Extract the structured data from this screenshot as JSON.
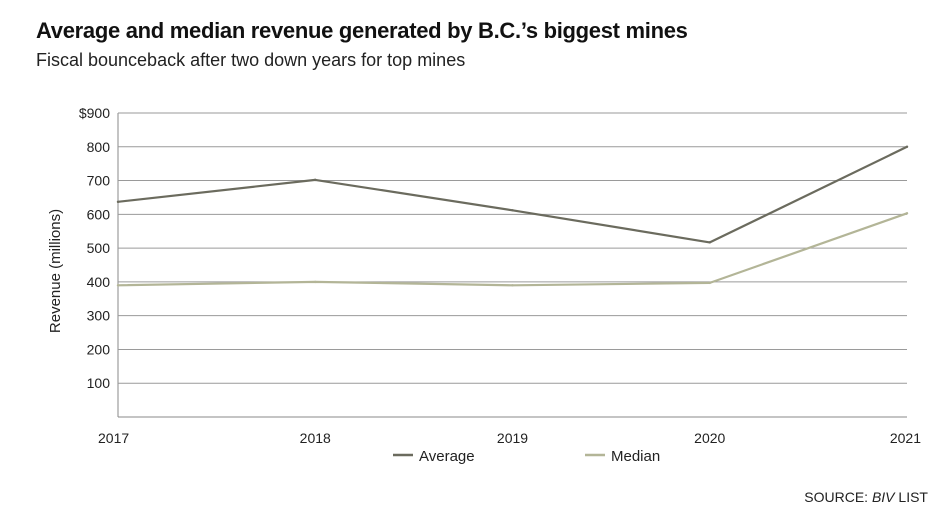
{
  "chart_data": {
    "type": "line",
    "title": "Average and median revenue generated by B.C.’s biggest mines",
    "subtitle": "Fiscal bounceback after two down years for top mines",
    "xlabel": "",
    "ylabel": "Revenue (millions)",
    "categories": [
      "2017",
      "2018",
      "2019",
      "2020",
      "2021"
    ],
    "x": [
      2017,
      2018,
      2019,
      2020,
      2021
    ],
    "ylim": [
      0,
      900
    ],
    "yticks": [
      100,
      200,
      300,
      400,
      500,
      600,
      700,
      800,
      900
    ],
    "ytick_labels": [
      "100",
      "200",
      "300",
      "400",
      "500",
      "600",
      "700",
      "800",
      "$900"
    ],
    "grid": true,
    "legend_position": "bottom-center",
    "series": [
      {
        "name": "Average",
        "color": "#6b6b5e",
        "values": [
          637,
          702,
          612,
          517,
          800
        ]
      },
      {
        "name": "Median",
        "color": "#b3b597",
        "values": [
          390,
          400,
          390,
          397,
          603
        ]
      }
    ],
    "source_prefix": "SOURCE:",
    "source_italic": "BIV",
    "source_suffix": "LIST"
  }
}
